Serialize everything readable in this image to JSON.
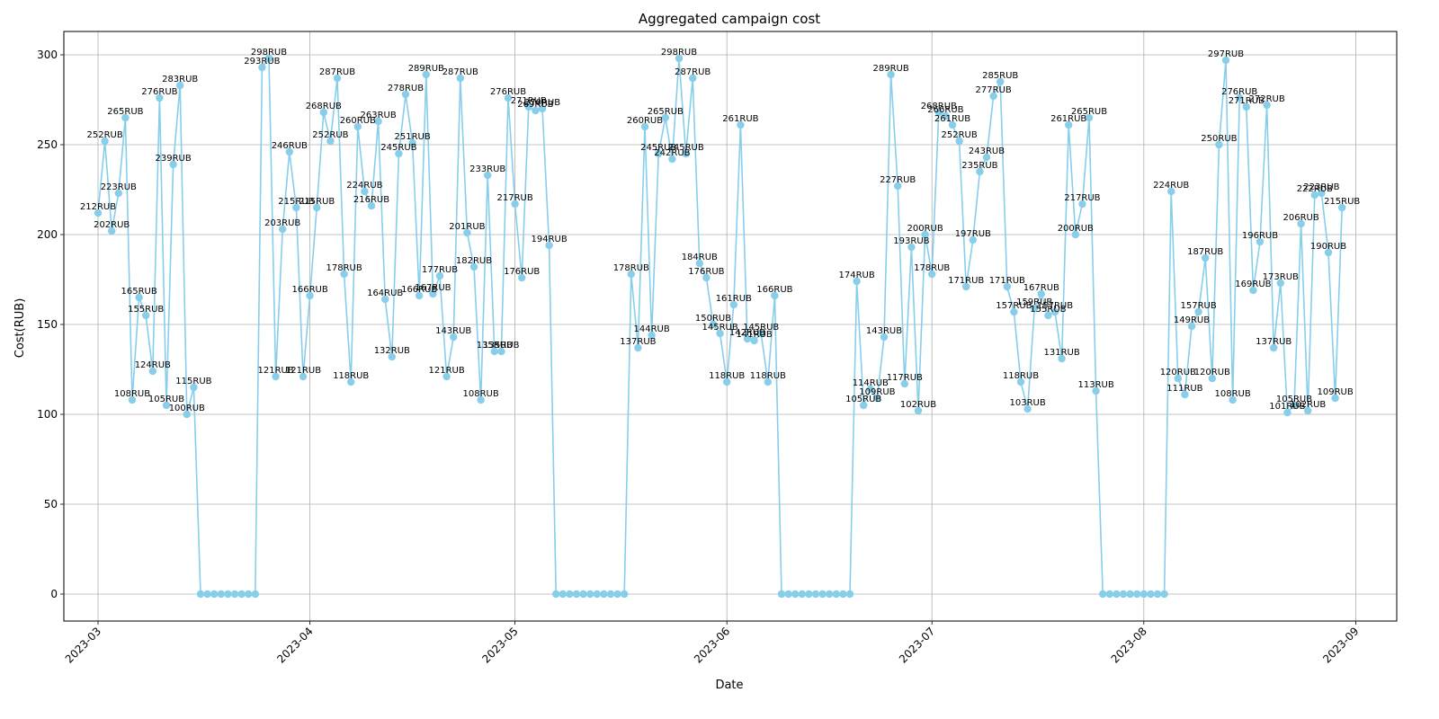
{
  "chart_data": {
    "type": "line",
    "title": "Aggregated campaign cost",
    "xlabel": "Date",
    "ylabel": "Cost(RUB)",
    "label_suffix": "RUB",
    "x_start": "2023-03-01",
    "x_ticks": [
      "2023-03",
      "2023-04",
      "2023-05",
      "2023-06",
      "2023-07",
      "2023-08",
      "2023-09"
    ],
    "y_ticks": [
      0,
      50,
      100,
      150,
      200,
      250,
      300
    ],
    "ylim": [
      -15,
      313
    ],
    "xlim": [
      "2023-02-24",
      "2023-09-07"
    ],
    "grid": true,
    "line_color": "#87ceeb",
    "values": [
      212,
      252,
      202,
      223,
      265,
      108,
      165,
      155,
      124,
      276,
      105,
      239,
      283,
      100,
      115,
      0,
      0,
      0,
      0,
      0,
      0,
      0,
      0,
      0,
      293,
      298,
      121,
      203,
      246,
      215,
      121,
      166,
      215,
      268,
      252,
      287,
      178,
      118,
      260,
      224,
      216,
      263,
      164,
      132,
      245,
      278,
      251,
      166,
      289,
      167,
      177,
      121,
      143,
      287,
      201,
      182,
      108,
      233,
      135,
      135,
      276,
      217,
      176,
      271,
      269,
      270,
      194,
      0,
      0,
      0,
      0,
      0,
      0,
      0,
      0,
      0,
      0,
      0,
      178,
      137,
      260,
      144,
      245,
      265,
      242,
      298,
      245,
      287,
      184,
      176,
      150,
      145,
      118,
      161,
      261,
      142,
      141,
      145,
      118,
      166,
      0,
      0,
      0,
      0,
      0,
      0,
      0,
      0,
      0,
      0,
      0,
      174,
      105,
      114,
      109,
      143,
      289,
      227,
      117,
      193,
      102,
      200,
      178,
      268,
      266,
      261,
      252,
      171,
      197,
      235,
      243,
      277,
      285,
      171,
      157,
      118,
      103,
      159,
      167,
      155,
      157,
      131,
      261,
      200,
      217,
      265,
      113,
      0,
      0,
      0,
      0,
      0,
      0,
      0,
      0,
      0,
      0,
      224,
      120,
      111,
      149,
      157,
      187,
      120,
      250,
      297,
      108,
      276,
      271,
      169,
      196,
      272,
      137,
      173,
      101,
      105,
      206,
      102,
      222,
      223,
      190,
      109,
      215
    ]
  }
}
